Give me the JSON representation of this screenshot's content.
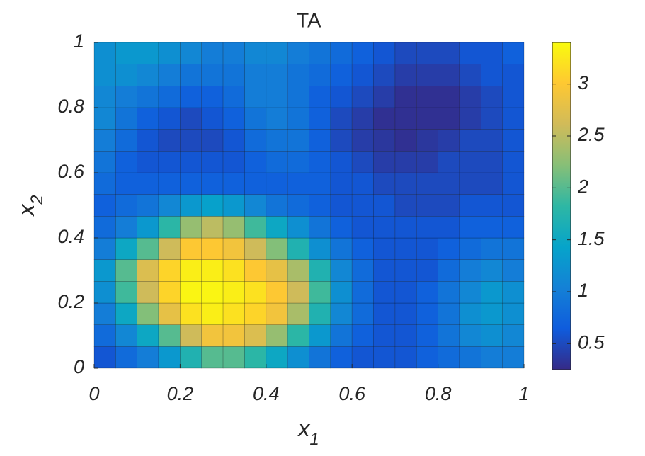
{
  "chart_data": {
    "type": "heatmap",
    "title": "TA",
    "xlabel": {
      "text": "x",
      "subscript": "1"
    },
    "ylabel": {
      "text": "x",
      "subscript": "2"
    },
    "xlim": [
      0,
      1
    ],
    "ylim": [
      0,
      1
    ],
    "xticks": [
      0,
      0.2,
      0.4,
      0.6,
      0.8,
      1
    ],
    "yticks": [
      0,
      0.2,
      0.4,
      0.6,
      0.8,
      1
    ],
    "x": [
      0.025,
      0.075,
      0.125,
      0.175,
      0.225,
      0.275,
      0.325,
      0.375,
      0.425,
      0.475,
      0.525,
      0.575,
      0.625,
      0.675,
      0.725,
      0.775,
      0.825,
      0.875,
      0.925,
      0.975
    ],
    "y": [
      0.0333,
      0.1,
      0.1667,
      0.2333,
      0.3,
      0.3667,
      0.4333,
      0.5,
      0.5667,
      0.6333,
      0.7,
      0.7667,
      0.8333,
      0.9,
      0.9667
    ],
    "z": [
      [
        0.6,
        0.8,
        1.0,
        1.3,
        1.7,
        2.0,
        2.0,
        1.8,
        1.5,
        1.2,
        0.9,
        0.7,
        0.6,
        0.6,
        0.6,
        0.7,
        0.8,
        0.9,
        1.0,
        1.0
      ],
      [
        0.8,
        1.1,
        1.5,
        2.0,
        2.6,
        2.9,
        2.9,
        2.7,
        2.3,
        1.8,
        1.3,
        0.9,
        0.7,
        0.6,
        0.6,
        0.7,
        0.9,
        1.1,
        1.2,
        1.1
      ],
      [
        1.0,
        1.5,
        2.2,
        2.8,
        3.2,
        3.3,
        3.2,
        3.1,
        2.9,
        2.4,
        1.7,
        1.1,
        0.8,
        0.6,
        0.6,
        0.7,
        0.9,
        1.2,
        1.3,
        1.2
      ],
      [
        1.2,
        1.9,
        2.6,
        3.1,
        3.35,
        3.35,
        3.3,
        3.2,
        3.0,
        2.6,
        1.9,
        1.2,
        0.8,
        0.6,
        0.6,
        0.7,
        0.9,
        1.1,
        1.3,
        1.2
      ],
      [
        1.3,
        2.0,
        2.7,
        3.1,
        3.3,
        3.3,
        3.2,
        3.0,
        2.8,
        2.4,
        1.7,
        1.1,
        0.8,
        0.6,
        0.6,
        0.6,
        0.8,
        1.0,
        1.1,
        1.0
      ],
      [
        1.0,
        1.5,
        2.0,
        2.6,
        3.0,
        3.0,
        2.9,
        2.6,
        2.2,
        1.7,
        1.2,
        0.9,
        0.7,
        0.6,
        0.6,
        0.6,
        0.7,
        0.8,
        0.9,
        0.9
      ],
      [
        0.8,
        1.0,
        1.3,
        1.8,
        2.3,
        2.5,
        2.3,
        1.9,
        1.5,
        1.2,
        0.9,
        0.7,
        0.6,
        0.6,
        0.6,
        0.6,
        0.6,
        0.7,
        0.7,
        0.7
      ],
      [
        0.7,
        0.8,
        0.9,
        1.1,
        1.3,
        1.4,
        1.3,
        1.1,
        0.9,
        0.8,
        0.7,
        0.6,
        0.6,
        0.6,
        0.5,
        0.5,
        0.5,
        0.6,
        0.6,
        0.6
      ],
      [
        0.8,
        0.7,
        0.7,
        0.7,
        0.7,
        0.7,
        0.7,
        0.7,
        0.7,
        0.7,
        0.7,
        0.6,
        0.6,
        0.5,
        0.5,
        0.5,
        0.5,
        0.5,
        0.5,
        0.6
      ],
      [
        0.9,
        0.7,
        0.6,
        0.6,
        0.6,
        0.6,
        0.6,
        0.7,
        0.8,
        0.8,
        0.7,
        0.6,
        0.5,
        0.4,
        0.4,
        0.4,
        0.5,
        0.5,
        0.5,
        0.6
      ],
      [
        1.0,
        0.8,
        0.6,
        0.5,
        0.5,
        0.5,
        0.6,
        0.8,
        0.9,
        0.9,
        0.7,
        0.5,
        0.4,
        0.35,
        0.3,
        0.35,
        0.4,
        0.5,
        0.5,
        0.6
      ],
      [
        1.1,
        0.9,
        0.7,
        0.6,
        0.5,
        0.6,
        0.7,
        0.9,
        1.0,
        0.9,
        0.7,
        0.5,
        0.4,
        0.3,
        0.3,
        0.3,
        0.3,
        0.4,
        0.5,
        0.6
      ],
      [
        1.1,
        1.0,
        0.9,
        0.8,
        0.7,
        0.7,
        0.8,
        1.0,
        1.0,
        0.9,
        0.7,
        0.6,
        0.5,
        0.4,
        0.3,
        0.3,
        0.3,
        0.4,
        0.5,
        0.6
      ],
      [
        1.2,
        1.2,
        1.1,
        1.0,
        0.9,
        0.9,
        0.9,
        1.0,
        1.0,
        0.9,
        0.8,
        0.7,
        0.6,
        0.5,
        0.4,
        0.4,
        0.4,
        0.5,
        0.6,
        0.6
      ],
      [
        1.2,
        1.3,
        1.3,
        1.2,
        1.1,
        1.0,
        1.0,
        1.1,
        1.1,
        1.0,
        0.9,
        0.8,
        0.7,
        0.6,
        0.5,
        0.5,
        0.5,
        0.6,
        0.6,
        0.7
      ]
    ],
    "clim": [
      0.25,
      3.4
    ],
    "colorbar_ticks": [
      0.5,
      1,
      1.5,
      2,
      2.5,
      3
    ],
    "colormap": [
      "#352a87",
      "#0f5cdd",
      "#1481d6",
      "#06a4ca",
      "#2eb7a4",
      "#87bf77",
      "#d1bb59",
      "#fec832",
      "#f9fb0e"
    ],
    "edgecolor": "#000000"
  }
}
